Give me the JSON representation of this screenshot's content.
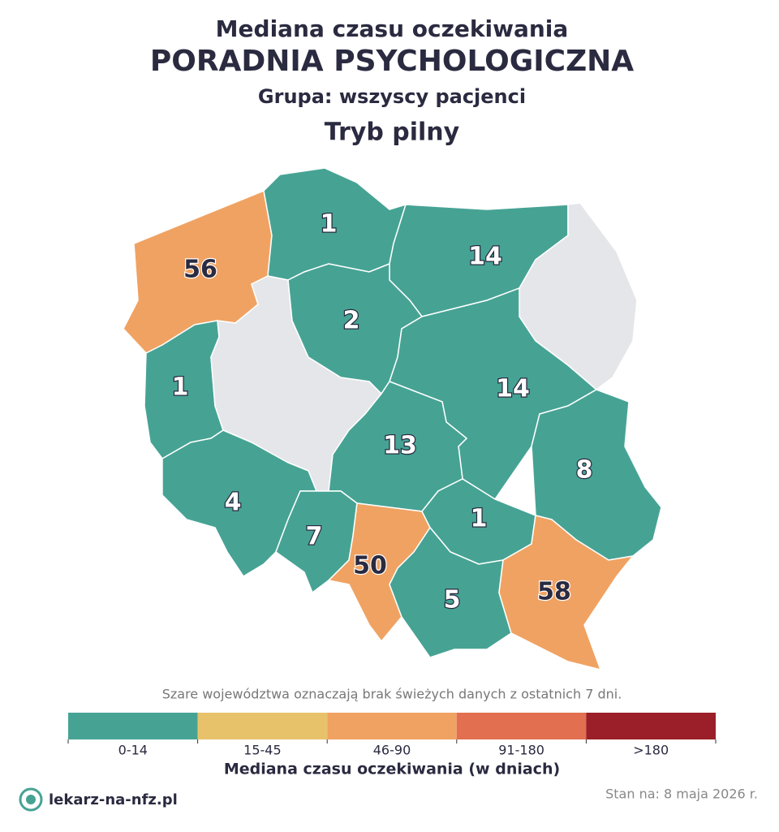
{
  "header": {
    "title": "Mediana czasu oczekiwania",
    "subtitle": "PORADNIA PSYCHOLOGICZNA",
    "group": "Grupa: wszyscy pacjenci",
    "mode": "Tryb pilny"
  },
  "map": {
    "type": "choropleth",
    "stroke": "#ffffff",
    "regions": [
      {
        "value": 56,
        "color": "#f0a262",
        "label_color": "#2a2a40"
      },
      {
        "value": 1,
        "color": "#46a394",
        "label_color": "#ffffff"
      },
      {
        "value": 14,
        "color": "#46a394",
        "label_color": "#ffffff"
      },
      {
        "value": null,
        "color": "#e5e6e9"
      },
      {
        "value": 1,
        "color": "#46a394",
        "label_color": "#ffffff"
      },
      {
        "value": null,
        "color": "#e5e6e9"
      },
      {
        "value": 2,
        "color": "#46a394",
        "label_color": "#ffffff"
      },
      {
        "value": 14,
        "color": "#46a394",
        "label_color": "#ffffff"
      },
      {
        "value": 13,
        "color": "#46a394",
        "label_color": "#ffffff"
      },
      {
        "value": 8,
        "color": "#46a394",
        "label_color": "#ffffff"
      },
      {
        "value": 4,
        "color": "#46a394",
        "label_color": "#ffffff"
      },
      {
        "value": 7,
        "color": "#46a394",
        "label_color": "#ffffff"
      },
      {
        "value": 50,
        "color": "#f0a262",
        "label_color": "#2a2a40"
      },
      {
        "value": 1,
        "color": "#46a394",
        "label_color": "#ffffff"
      },
      {
        "value": 5,
        "color": "#46a394",
        "label_color": "#ffffff"
      },
      {
        "value": 58,
        "color": "#f0a262",
        "label_color": "#2a2a40"
      }
    ]
  },
  "note": "Szare województwa oznaczają brak świeżych danych z ostatnich 7 dni.",
  "legend": {
    "title": "Mediana czasu oczekiwania (w dniach)",
    "bins": [
      {
        "label": "0-14",
        "color": "#46a394"
      },
      {
        "label": "15-45",
        "color": "#e8c26a"
      },
      {
        "label": "46-90",
        "color": "#f0a262"
      },
      {
        "label": "91-180",
        "color": "#e26f50"
      },
      {
        "label": ">180",
        "color": "#9b1f28"
      }
    ]
  },
  "footer": {
    "brand": "lekarz-na-nfz.pl",
    "date": "Stan na: 8 maja 2026 r."
  }
}
